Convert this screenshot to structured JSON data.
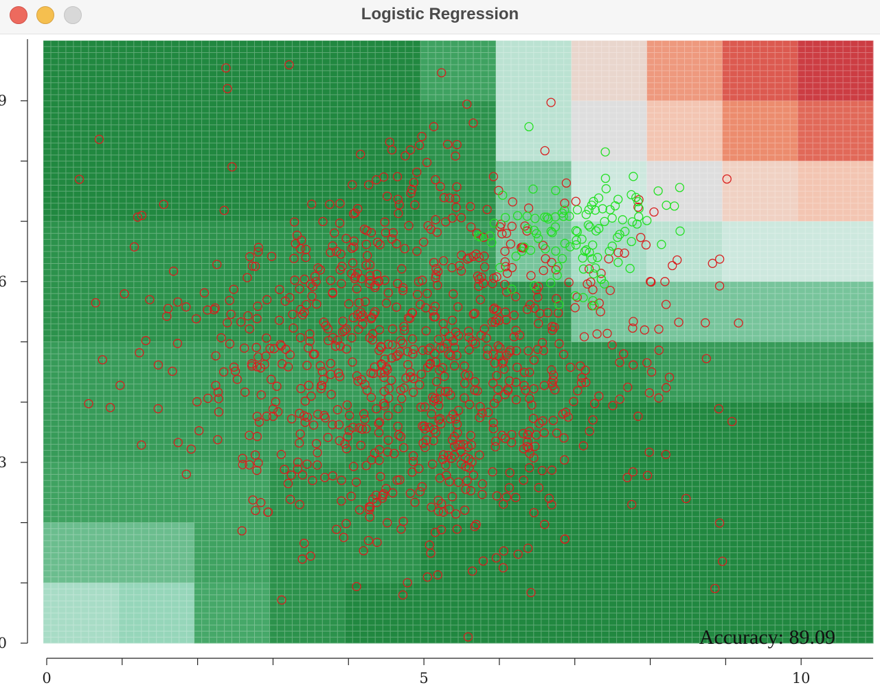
{
  "window": {
    "title": "Logistic Regression",
    "buttons": [
      "close",
      "minimize",
      "zoom"
    ]
  },
  "accuracy_text": "Accuracy: 89.09",
  "chart_data": {
    "type": "scatter",
    "title": "",
    "xlabel": "",
    "ylabel": "",
    "xlim": [
      0,
      11
    ],
    "ylim": [
      0,
      10
    ],
    "x_ticks": [
      0,
      5,
      10
    ],
    "y_ticks": [
      0,
      3,
      6,
      9
    ],
    "grid": true,
    "marker": "hollow-circle",
    "colors": {
      "class0_points": "#d81e1e",
      "class1_points": "#22e022",
      "region_strong_green": "#1e8a3c",
      "region_red": "#c83240"
    },
    "decision_surface": {
      "description_levels": "predicted probability of class 1 per 1x1 cell (x from 0 to 11, rows from y=10 down to y=0)",
      "rows": [
        [
          0.02,
          0.02,
          0.02,
          0.02,
          0.02,
          0.1,
          0.35,
          0.55,
          0.72,
          0.85,
          0.95
        ],
        [
          0.02,
          0.02,
          0.02,
          0.02,
          0.02,
          0.05,
          0.35,
          0.5,
          0.62,
          0.75,
          0.82
        ],
        [
          0.02,
          0.02,
          0.02,
          0.02,
          0.02,
          0.05,
          0.2,
          0.4,
          0.5,
          0.58,
          0.62
        ],
        [
          0.05,
          0.05,
          0.05,
          0.05,
          0.05,
          0.08,
          0.2,
          0.3,
          0.35,
          0.4,
          0.4
        ],
        [
          0.05,
          0.05,
          0.05,
          0.05,
          0.05,
          0.05,
          0.05,
          0.2,
          0.2,
          0.2,
          0.2
        ],
        [
          0.08,
          0.08,
          0.08,
          0.08,
          0.08,
          0.05,
          0.05,
          0.05,
          0.08,
          0.08,
          0.08
        ],
        [
          0.08,
          0.08,
          0.08,
          0.08,
          0.05,
          0.05,
          0.05,
          0.02,
          0.02,
          0.02,
          0.02
        ],
        [
          0.1,
          0.1,
          0.1,
          0.05,
          0.05,
          0.05,
          0.02,
          0.02,
          0.02,
          0.02,
          0.02
        ],
        [
          0.18,
          0.18,
          0.1,
          0.05,
          0.05,
          0.02,
          0.02,
          0.02,
          0.02,
          0.02,
          0.02
        ],
        [
          0.3,
          0.25,
          0.12,
          0.05,
          0.02,
          0.02,
          0.02,
          0.02,
          0.02,
          0.02,
          0.02
        ]
      ]
    },
    "series": [
      {
        "class": 0,
        "distribution": "gaussian cloud of hollow red circles",
        "count": 900,
        "center": [
          4.9,
          4.7
        ],
        "spread": [
          1.6,
          1.6
        ]
      },
      {
        "class": 1,
        "distribution": "cluster of hollow green circles",
        "count": 110,
        "center": [
          7.2,
          6.9
        ],
        "spread": [
          0.6,
          0.5
        ]
      }
    ]
  }
}
